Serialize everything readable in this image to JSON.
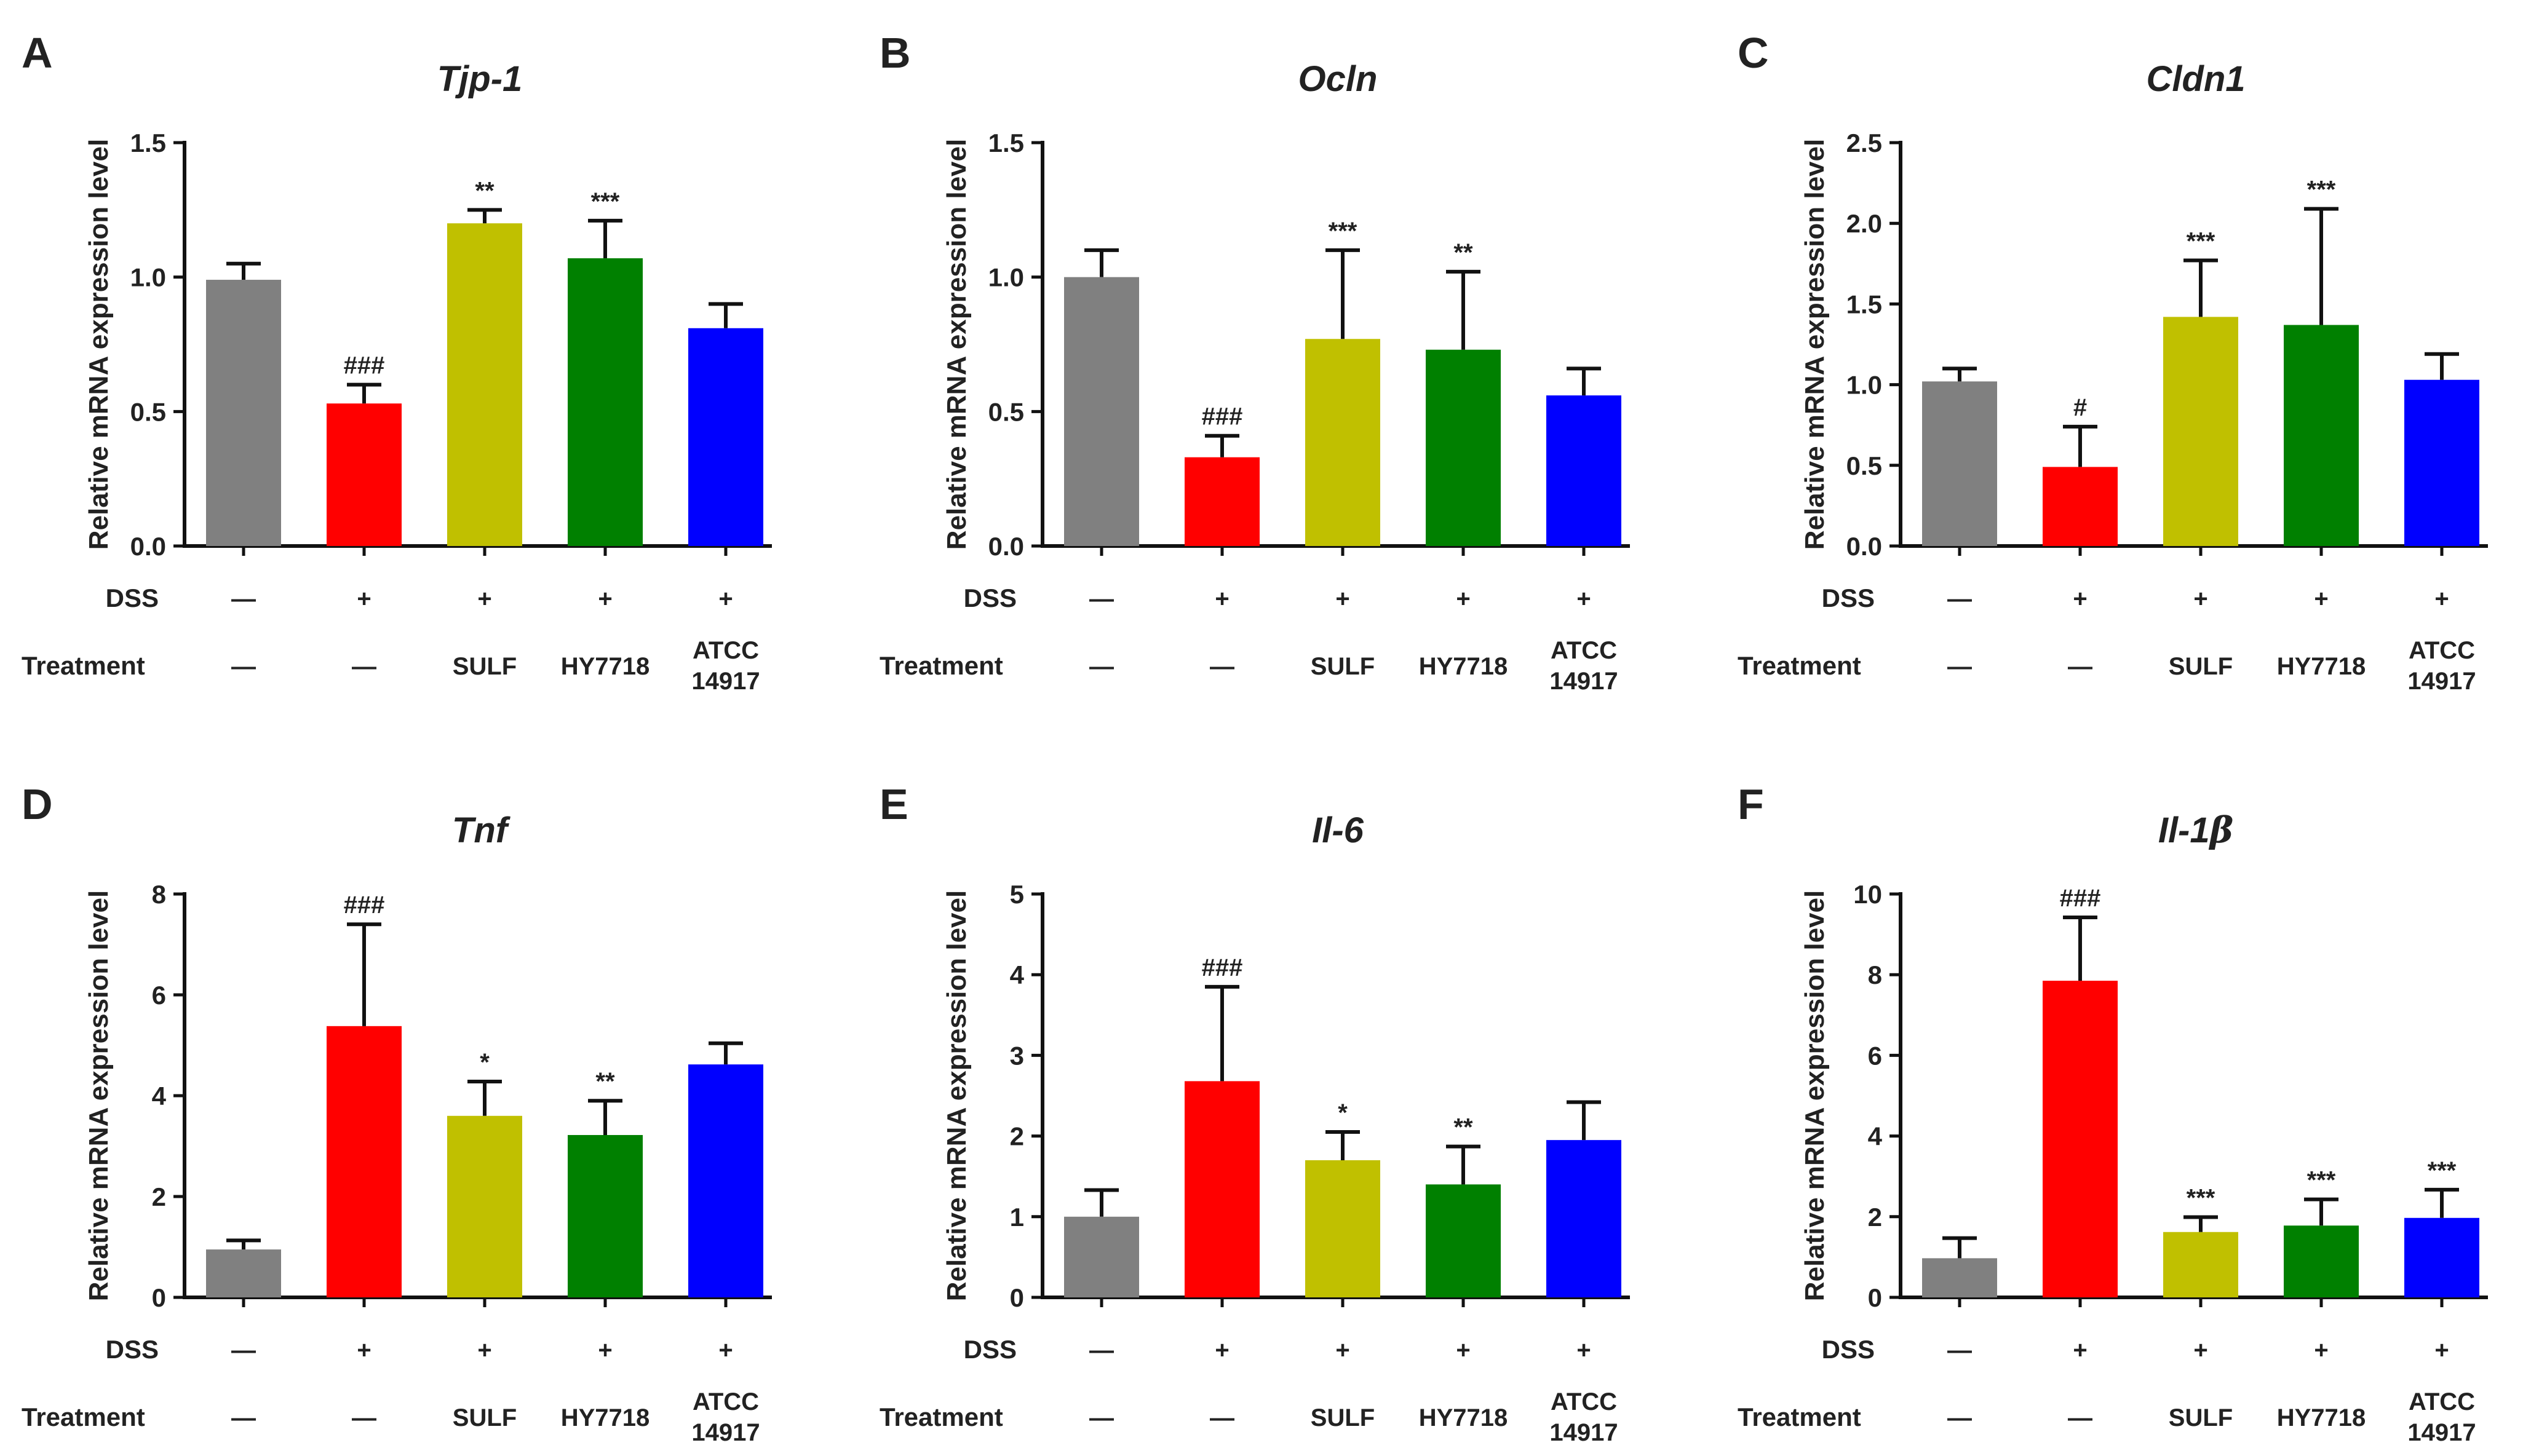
{
  "figure": {
    "ylabel": "Relative mRNA expression level",
    "row_labels": {
      "dss": "DSS",
      "treatment": "Treatment"
    },
    "dss": [
      "—",
      "+",
      "+",
      "+",
      "+"
    ],
    "treatment": [
      [
        "—"
      ],
      [
        "—"
      ],
      [
        "SULF"
      ],
      [
        "HY7718"
      ],
      [
        "ATCC",
        "14917"
      ]
    ],
    "bar_colors": [
      "#808080",
      "#ff0000",
      "#c0c000",
      "#008000",
      "#0000ff"
    ]
  },
  "chart_data": [
    {
      "type": "bar",
      "panel": "A",
      "title": "Tjp-1",
      "title_italic_all": true,
      "categories": [
        "—",
        "—",
        "SULF",
        "HY7718",
        "ATCC 14917"
      ],
      "values": [
        0.99,
        0.53,
        1.2,
        1.07,
        0.81
      ],
      "errors": [
        0.06,
        0.07,
        0.05,
        0.14,
        0.09
      ],
      "significance": [
        "",
        "###",
        "**",
        "***",
        ""
      ],
      "ylim": [
        0,
        1.5
      ],
      "yticks": [
        "0.0",
        "0.5",
        "1.0",
        "1.5"
      ]
    },
    {
      "type": "bar",
      "panel": "B",
      "title": "Ocln",
      "title_italic_all": true,
      "categories": [
        "—",
        "—",
        "SULF",
        "HY7718",
        "ATCC 14917"
      ],
      "values": [
        1.0,
        0.33,
        0.77,
        0.73,
        0.56
      ],
      "errors": [
        0.1,
        0.08,
        0.33,
        0.29,
        0.1
      ],
      "significance": [
        "",
        "###",
        "***",
        "**",
        ""
      ],
      "ylim": [
        0,
        1.5
      ],
      "yticks": [
        "0.0",
        "0.5",
        "1.0",
        "1.5"
      ]
    },
    {
      "type": "bar",
      "panel": "C",
      "title": "Cldn1",
      "title_italic_all": true,
      "categories": [
        "—",
        "—",
        "SULF",
        "HY7718",
        "ATCC 14917"
      ],
      "values": [
        1.02,
        0.49,
        1.42,
        1.37,
        1.03
      ],
      "errors": [
        0.08,
        0.25,
        0.35,
        0.72,
        0.16
      ],
      "significance": [
        "",
        "#",
        "***",
        "***",
        ""
      ],
      "ylim": [
        0,
        2.5
      ],
      "yticks": [
        "0.0",
        "0.5",
        "1.0",
        "1.5",
        "2.0",
        "2.5"
      ]
    },
    {
      "type": "bar",
      "panel": "D",
      "title": "Tnf",
      "title_italic_all": true,
      "categories": [
        "—",
        "—",
        "SULF",
        "HY7718",
        "ATCC 14917"
      ],
      "values": [
        0.95,
        5.38,
        3.6,
        3.22,
        4.62
      ],
      "errors": [
        0.18,
        2.02,
        0.68,
        0.68,
        0.42
      ],
      "significance": [
        "",
        "###",
        "*",
        "**",
        ""
      ],
      "ylim": [
        0,
        8
      ],
      "yticks": [
        "0",
        "2",
        "4",
        "6",
        "8"
      ]
    },
    {
      "type": "bar",
      "panel": "E",
      "title": "Il-6",
      "title_italic_all": true,
      "categories": [
        "—",
        "—",
        "SULF",
        "HY7718",
        "ATCC 14917"
      ],
      "values": [
        1.0,
        2.68,
        1.7,
        1.4,
        1.95
      ],
      "errors": [
        0.33,
        1.17,
        0.35,
        0.47,
        0.47
      ],
      "significance": [
        "",
        "###",
        "*",
        "**",
        ""
      ],
      "ylim": [
        0,
        5
      ],
      "yticks": [
        "0",
        "1",
        "2",
        "3",
        "4",
        "5"
      ]
    },
    {
      "type": "bar",
      "panel": "F",
      "title_main": "Il-1",
      "title_greek": "β",
      "categories": [
        "—",
        "—",
        "SULF",
        "HY7718",
        "ATCC 14917"
      ],
      "values": [
        0.97,
        7.85,
        1.62,
        1.78,
        1.97
      ],
      "errors": [
        0.5,
        1.57,
        0.37,
        0.65,
        0.7
      ],
      "significance": [
        "",
        "###",
        "***",
        "***",
        "***"
      ],
      "ylim": [
        0,
        10
      ],
      "yticks": [
        "0",
        "2",
        "4",
        "6",
        "8",
        "10"
      ]
    }
  ]
}
